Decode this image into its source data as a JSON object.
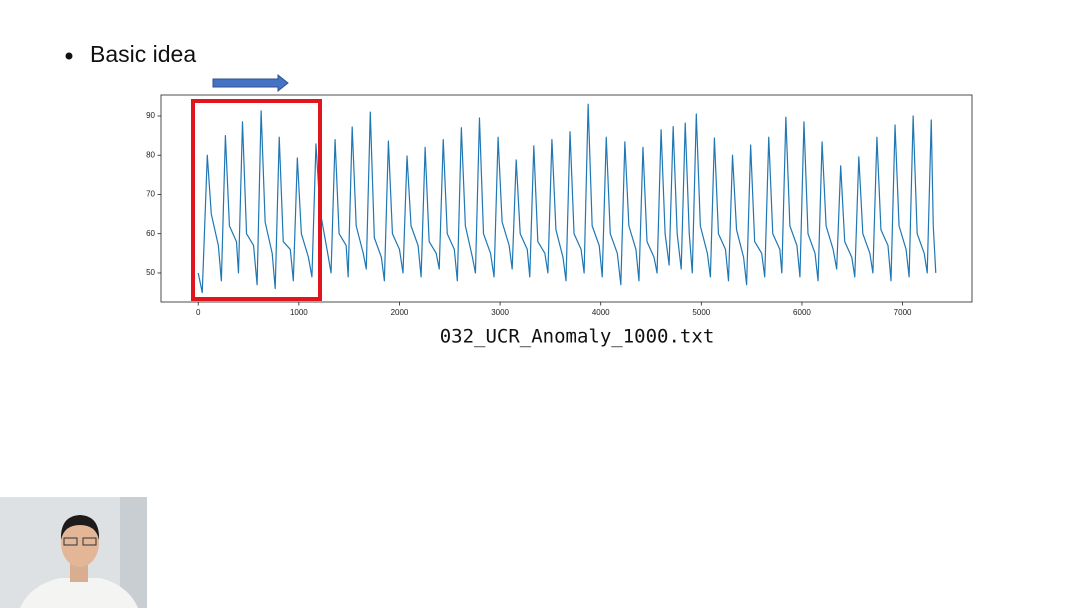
{
  "slide": {
    "bullet": "Basic idea"
  },
  "chart_data": {
    "type": "line",
    "xlabel": "032_UCR_Anomaly_1000.txt",
    "x": [
      0,
      40,
      90,
      130,
      200,
      230,
      270,
      310,
      380,
      400,
      440,
      480,
      550,
      585,
      625,
      665,
      735,
      765,
      805,
      845,
      915,
      945,
      985,
      1025,
      1095,
      1130,
      1170,
      1210,
      1280,
      1320,
      1360,
      1400,
      1470,
      1490,
      1530,
      1570,
      1640,
      1670,
      1710,
      1750,
      1820,
      1850,
      1890,
      1930,
      2000,
      2035,
      2075,
      2115,
      2185,
      2215,
      2255,
      2295,
      2365,
      2395,
      2435,
      2475,
      2545,
      2575,
      2615,
      2655,
      2725,
      2755,
      2795,
      2835,
      2905,
      2940,
      2980,
      3020,
      3090,
      3120,
      3160,
      3200,
      3270,
      3295,
      3335,
      3375,
      3445,
      3475,
      3515,
      3555,
      3625,
      3655,
      3695,
      3735,
      3805,
      3835,
      3875,
      3915,
      3985,
      4015,
      4055,
      4095,
      4165,
      4200,
      4240,
      4280,
      4350,
      4380,
      4420,
      4460,
      4530,
      4560,
      4600,
      4640,
      4680,
      4720,
      4760,
      4800,
      4840,
      4880,
      4910,
      4950,
      4990,
      5060,
      5090,
      5130,
      5170,
      5240,
      5270,
      5310,
      5350,
      5420,
      5450,
      5490,
      5530,
      5600,
      5630,
      5670,
      5710,
      5780,
      5800,
      5840,
      5880,
      5950,
      5980,
      6020,
      6060,
      6130,
      6160,
      6200,
      6240,
      6310,
      6345,
      6385,
      6425,
      6495,
      6525,
      6565,
      6605,
      6675,
      6705,
      6745,
      6785,
      6855,
      6885,
      6925,
      6965,
      7035,
      7065,
      7105,
      7145,
      7215,
      7245,
      7285,
      7305,
      7330
    ],
    "series": [
      {
        "color": "#1f77b4",
        "values": [
          50,
          45,
          80,
          65,
          57,
          48,
          85,
          62,
          58,
          50,
          88.5,
          60,
          57,
          47,
          91.3,
          63,
          55,
          46,
          84.6,
          58,
          56,
          48,
          79.3,
          60,
          54,
          49,
          82.9,
          66,
          56,
          50,
          84,
          60,
          57,
          49,
          87.2,
          62,
          55,
          51,
          91,
          59,
          54,
          48,
          83.6,
          60,
          56,
          50,
          79.8,
          62,
          57,
          49,
          82,
          58,
          55,
          51,
          84,
          60,
          56,
          48,
          87,
          62,
          54,
          50,
          89.5,
          60,
          55,
          49,
          84.6,
          63,
          57,
          51,
          78.8,
          60,
          56,
          49,
          82.4,
          58,
          55,
          50,
          84,
          61,
          54,
          48,
          86,
          60,
          56,
          50,
          93,
          62,
          57,
          49,
          84.6,
          60,
          55,
          47,
          83.4,
          62,
          56,
          48,
          82,
          58,
          54,
          50,
          86.5,
          60,
          52,
          87.3,
          60,
          51,
          88.2,
          60,
          50,
          90.5,
          62,
          55,
          49,
          84.4,
          60,
          56,
          48,
          80,
          61,
          54,
          47,
          82.6,
          58,
          55,
          49,
          84.6,
          60,
          56,
          50,
          89.7,
          62,
          57,
          49,
          88.5,
          60,
          55,
          48,
          83.4,
          62,
          56,
          51,
          77.3,
          58,
          54,
          49,
          79.6,
          60,
          55,
          50,
          84.6,
          61,
          57,
          48,
          87.7,
          62,
          56,
          49,
          90,
          60,
          55,
          50,
          89,
          62,
          50
        ]
      }
    ],
    "xlim": [
      -370,
      7690
    ],
    "xticks": [
      0,
      1000,
      2000,
      3000,
      4000,
      5000,
      6000,
      7000
    ],
    "ylim": [
      42.6,
      95.35
    ],
    "yticks": [
      50,
      60,
      70,
      80,
      90
    ],
    "grid": false
  }
}
